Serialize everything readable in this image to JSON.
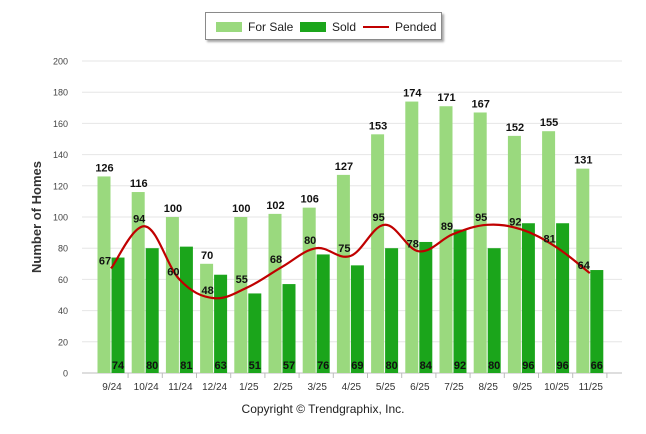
{
  "chart_data": {
    "type": "bar",
    "title": "",
    "xlabel": "",
    "ylabel": "Number of Homes",
    "ylim": [
      0,
      200
    ],
    "yticks": [
      0,
      20,
      40,
      60,
      80,
      100,
      120,
      140,
      160,
      180,
      200
    ],
    "categories": [
      "9/24",
      "10/24",
      "11/24",
      "12/24",
      "1/25",
      "2/25",
      "3/25",
      "4/25",
      "5/25",
      "6/25",
      "7/25",
      "8/25",
      "9/25",
      "10/25",
      "11/25"
    ],
    "series": [
      {
        "name": "For Sale",
        "kind": "bar",
        "color": "#9ad97e",
        "values": [
          126,
          116,
          100,
          70,
          100,
          102,
          106,
          127,
          153,
          174,
          171,
          167,
          152,
          155,
          131
        ]
      },
      {
        "name": "Sold",
        "kind": "bar",
        "color": "#1ba51b",
        "values": [
          74,
          80,
          81,
          63,
          51,
          57,
          76,
          69,
          80,
          84,
          92,
          80,
          96,
          96,
          66
        ]
      },
      {
        "name": "Pended",
        "kind": "line",
        "color": "#c00000",
        "values": [
          67,
          94,
          60,
          48,
          55,
          68,
          80,
          75,
          95,
          78,
          89,
          95,
          92,
          81,
          64
        ]
      }
    ],
    "legend_position": "top-center"
  },
  "legend": {
    "for_sale": "For Sale",
    "sold": "Sold",
    "pended": "Pended"
  },
  "copyright": "Copyright © Trendgraphix, Inc."
}
